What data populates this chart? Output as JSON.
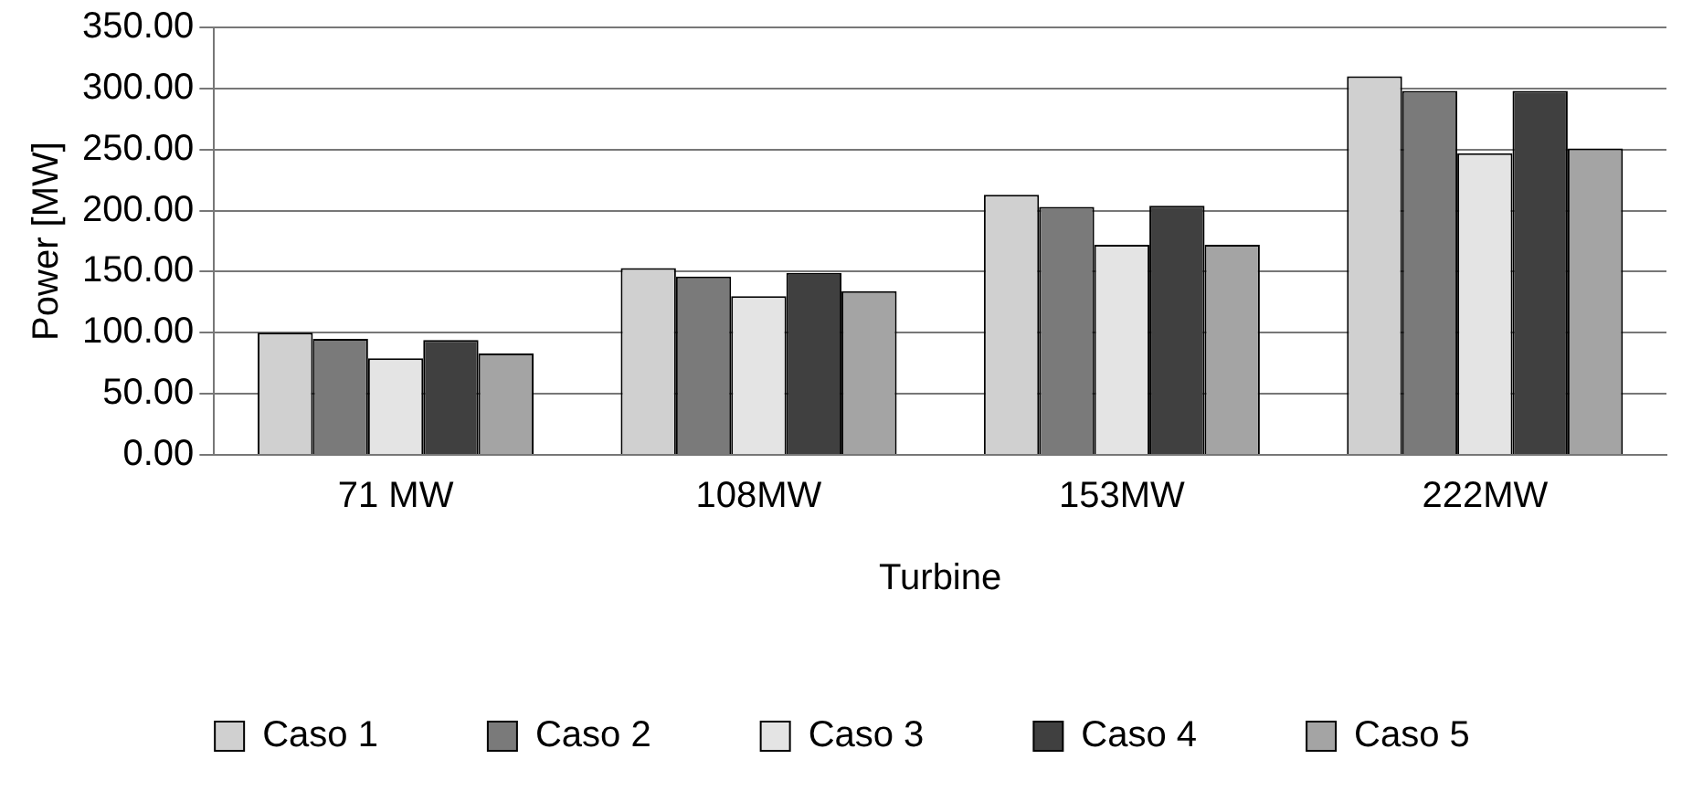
{
  "chart_data": {
    "type": "bar",
    "xlabel": "Turbine",
    "ylabel": "Power [MW]",
    "categories": [
      "71 MW",
      "108MW",
      "153MW",
      "222MW"
    ],
    "series": [
      {
        "name": "Caso 1",
        "color": "#d0d0d0",
        "values": [
          100,
          153,
          213,
          310
        ]
      },
      {
        "name": "Caso 2",
        "color": "#7a7a7a",
        "values": [
          95,
          146,
          203,
          298
        ]
      },
      {
        "name": "Caso 3",
        "color": "#e4e4e4",
        "values": [
          79,
          130,
          172,
          247
        ]
      },
      {
        "name": "Caso 4",
        "color": "#404040",
        "values": [
          94,
          149,
          204,
          298
        ]
      },
      {
        "name": "Caso 5",
        "color": "#a4a4a4",
        "values": [
          83,
          134,
          172,
          251
        ]
      }
    ],
    "ylim": [
      0,
      350
    ],
    "yticks": [
      {
        "value": 0,
        "label": "0.00"
      },
      {
        "value": 50,
        "label": "50.00"
      },
      {
        "value": 100,
        "label": "100.00"
      },
      {
        "value": 150,
        "label": "150.00"
      },
      {
        "value": 200,
        "label": "200.00"
      },
      {
        "value": 250,
        "label": "250.00"
      },
      {
        "value": 300,
        "label": "300.00"
      },
      {
        "value": 350,
        "label": "350.00"
      }
    ],
    "grid": "y",
    "legend": "bottom"
  }
}
